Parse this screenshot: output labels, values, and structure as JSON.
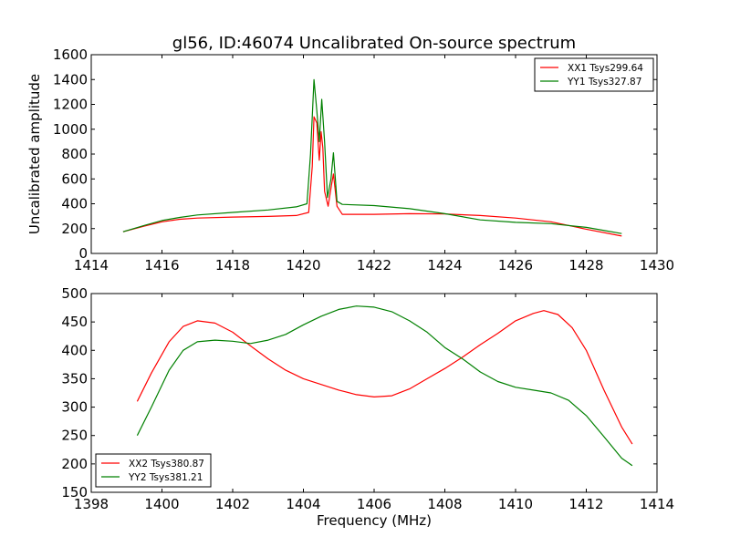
{
  "figure": {
    "title": "gl56, ID:46074 Uncalibrated On-source spectrum",
    "xlabel": "Frequency (MHz)"
  },
  "chart_data": [
    {
      "type": "line",
      "title": "gl56, ID:46074 Uncalibrated On-source spectrum",
      "xlabel": "",
      "ylabel": "Uncalibrated amplitude",
      "xlim": [
        1414,
        1430
      ],
      "ylim": [
        0,
        1600
      ],
      "xticks": [
        1414,
        1416,
        1418,
        1420,
        1422,
        1424,
        1426,
        1428,
        1430
      ],
      "yticks": [
        0,
        200,
        400,
        600,
        800,
        1000,
        1200,
        1400,
        1600
      ],
      "grid": false,
      "legend": "top-right",
      "series": [
        {
          "name": "XX1 Tsys299.64",
          "color": "#ff0000",
          "x": [
            1414.9,
            1415.5,
            1416.0,
            1416.5,
            1417.0,
            1418.0,
            1419.0,
            1419.8,
            1420.15,
            1420.25,
            1420.3,
            1420.38,
            1420.45,
            1420.5,
            1420.55,
            1420.6,
            1420.7,
            1420.8,
            1420.85,
            1420.95,
            1421.1,
            1422.0,
            1423.0,
            1424.0,
            1425.0,
            1426.0,
            1427.0,
            1428.0,
            1429.0
          ],
          "y": [
            175,
            220,
            255,
            275,
            285,
            293,
            298,
            305,
            330,
            700,
            1100,
            1050,
            750,
            980,
            850,
            500,
            380,
            560,
            640,
            380,
            315,
            315,
            320,
            318,
            305,
            285,
            255,
            195,
            140
          ]
        },
        {
          "name": "YY1 Tsys327.87",
          "color": "#008000",
          "x": [
            1414.9,
            1415.5,
            1416.0,
            1416.5,
            1417.0,
            1418.0,
            1419.0,
            1419.8,
            1420.1,
            1420.2,
            1420.3,
            1420.38,
            1420.45,
            1420.52,
            1420.6,
            1420.68,
            1420.78,
            1420.85,
            1420.95,
            1421.1,
            1422.0,
            1423.0,
            1424.0,
            1425.0,
            1426.0,
            1427.0,
            1428.0,
            1429.0
          ],
          "y": [
            175,
            225,
            265,
            290,
            310,
            330,
            350,
            375,
            400,
            800,
            1400,
            1150,
            900,
            1240,
            900,
            450,
            600,
            810,
            420,
            395,
            385,
            360,
            320,
            270,
            250,
            240,
            210,
            160
          ]
        }
      ]
    },
    {
      "type": "line",
      "title": "",
      "xlabel": "Frequency (MHz)",
      "ylabel": "",
      "xlim": [
        1398,
        1414
      ],
      "ylim": [
        150,
        500
      ],
      "xticks": [
        1398,
        1400,
        1402,
        1404,
        1406,
        1408,
        1410,
        1412,
        1414
      ],
      "yticks": [
        150,
        200,
        250,
        300,
        350,
        400,
        450,
        500
      ],
      "grid": false,
      "legend": "bottom-left",
      "series": [
        {
          "name": "XX2 Tsys380.87",
          "color": "#ff0000",
          "x": [
            1399.3,
            1399.7,
            1400.2,
            1400.6,
            1401.0,
            1401.5,
            1402.0,
            1402.5,
            1403.0,
            1403.5,
            1404.0,
            1404.5,
            1405.0,
            1405.5,
            1406.0,
            1406.5,
            1407.0,
            1407.5,
            1408.0,
            1408.5,
            1409.0,
            1409.5,
            1410.0,
            1410.5,
            1410.8,
            1411.2,
            1411.6,
            1412.0,
            1412.5,
            1413.0,
            1413.3
          ],
          "y": [
            310,
            360,
            415,
            442,
            452,
            448,
            432,
            408,
            385,
            365,
            350,
            340,
            330,
            322,
            318,
            320,
            332,
            350,
            368,
            388,
            410,
            430,
            452,
            465,
            470,
            463,
            440,
            400,
            330,
            265,
            235
          ]
        },
        {
          "name": "YY2 Tsys381.21",
          "color": "#008000",
          "x": [
            1399.3,
            1399.7,
            1400.2,
            1400.6,
            1401.0,
            1401.5,
            1402.0,
            1402.5,
            1403.0,
            1403.5,
            1404.0,
            1404.5,
            1405.0,
            1405.5,
            1406.0,
            1406.5,
            1407.0,
            1407.5,
            1408.0,
            1408.5,
            1409.0,
            1409.5,
            1410.0,
            1410.5,
            1411.0,
            1411.5,
            1412.0,
            1412.5,
            1413.0,
            1413.3
          ],
          "y": [
            250,
            300,
            365,
            400,
            415,
            418,
            416,
            412,
            418,
            428,
            445,
            460,
            472,
            478,
            476,
            468,
            452,
            432,
            405,
            385,
            362,
            345,
            335,
            330,
            325,
            312,
            285,
            248,
            210,
            197
          ]
        }
      ]
    }
  ]
}
